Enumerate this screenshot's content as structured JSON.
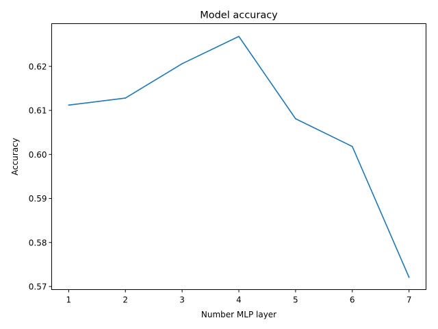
{
  "chart_data": {
    "type": "line",
    "title": "Model accuracy",
    "xlabel": "Number MLP layer",
    "ylabel": "Accuracy",
    "x": [
      1,
      2,
      3,
      4,
      5,
      6,
      7
    ],
    "series": [
      {
        "values": [
          0.6112,
          0.6128,
          0.6206,
          0.6268,
          0.6081,
          0.6018,
          0.5721
        ],
        "color": "#1f77b4"
      }
    ],
    "xticks": [
      1,
      2,
      3,
      4,
      5,
      6,
      7
    ],
    "xtick_labels": [
      "1",
      "2",
      "3",
      "4",
      "5",
      "6",
      "7"
    ],
    "yticks": [
      0.57,
      0.58,
      0.59,
      0.6,
      0.61,
      0.62
    ],
    "ytick_labels": [
      "0.57",
      "0.58",
      "0.59",
      "0.60",
      "0.61",
      "0.62"
    ],
    "xlim": [
      0.7,
      7.3
    ],
    "ylim": [
      0.5693,
      0.6297
    ],
    "grid": false,
    "legend": "none"
  }
}
